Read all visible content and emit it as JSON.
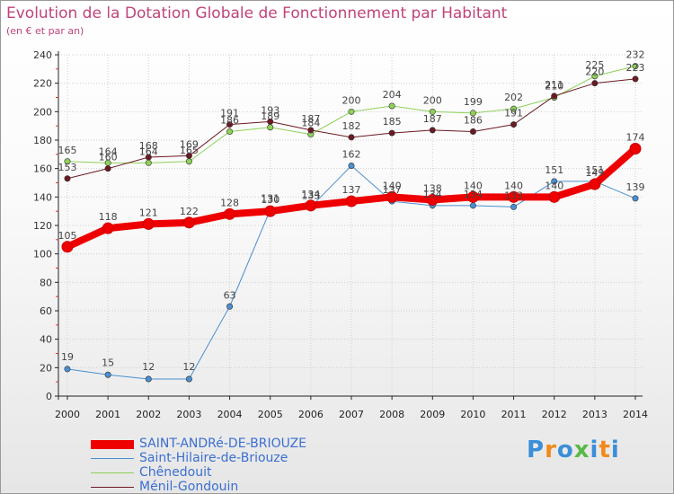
{
  "header": {
    "title": "Evolution de la Dotation Globale de Fonctionnement par Habitant",
    "subtitle": "(en € et par an)"
  },
  "brand": {
    "text": "Proxiti"
  },
  "chart_data": {
    "type": "line",
    "x": [
      2000,
      2001,
      2002,
      2003,
      2004,
      2005,
      2006,
      2007,
      2008,
      2009,
      2010,
      2011,
      2012,
      2013,
      2014
    ],
    "ylim": [
      0,
      240
    ],
    "yticks": [
      0,
      20,
      40,
      60,
      80,
      100,
      120,
      140,
      160,
      180,
      200,
      220,
      240
    ],
    "grid": true,
    "legend_position": "bottom-left",
    "series": [
      {
        "name": "SAINT-ANDRé-DE-BRIOUZE",
        "color": "#ee0000",
        "values": [
          105,
          118,
          121,
          122,
          128,
          130,
          134,
          137,
          140,
          138,
          140,
          140,
          140,
          149,
          174
        ]
      },
      {
        "name": "Saint-Hilaire-de-Briouze",
        "color": "#4a8fd0",
        "values": [
          19,
          15,
          12,
          12,
          63,
          131,
          133,
          162,
          137,
          134,
          134,
          133,
          151,
          151,
          139
        ]
      },
      {
        "name": "Chênedouit",
        "color": "#8fd05a",
        "values": [
          165,
          164,
          164,
          165,
          186,
          189,
          184,
          200,
          204,
          200,
          199,
          202,
          210,
          225,
          232
        ]
      },
      {
        "name": "Ménil-Gondouin",
        "color": "#6b1a24",
        "values": [
          153,
          160,
          168,
          169,
          191,
          193,
          187,
          182,
          185,
          187,
          186,
          191,
          211,
          220,
          223
        ]
      }
    ]
  }
}
